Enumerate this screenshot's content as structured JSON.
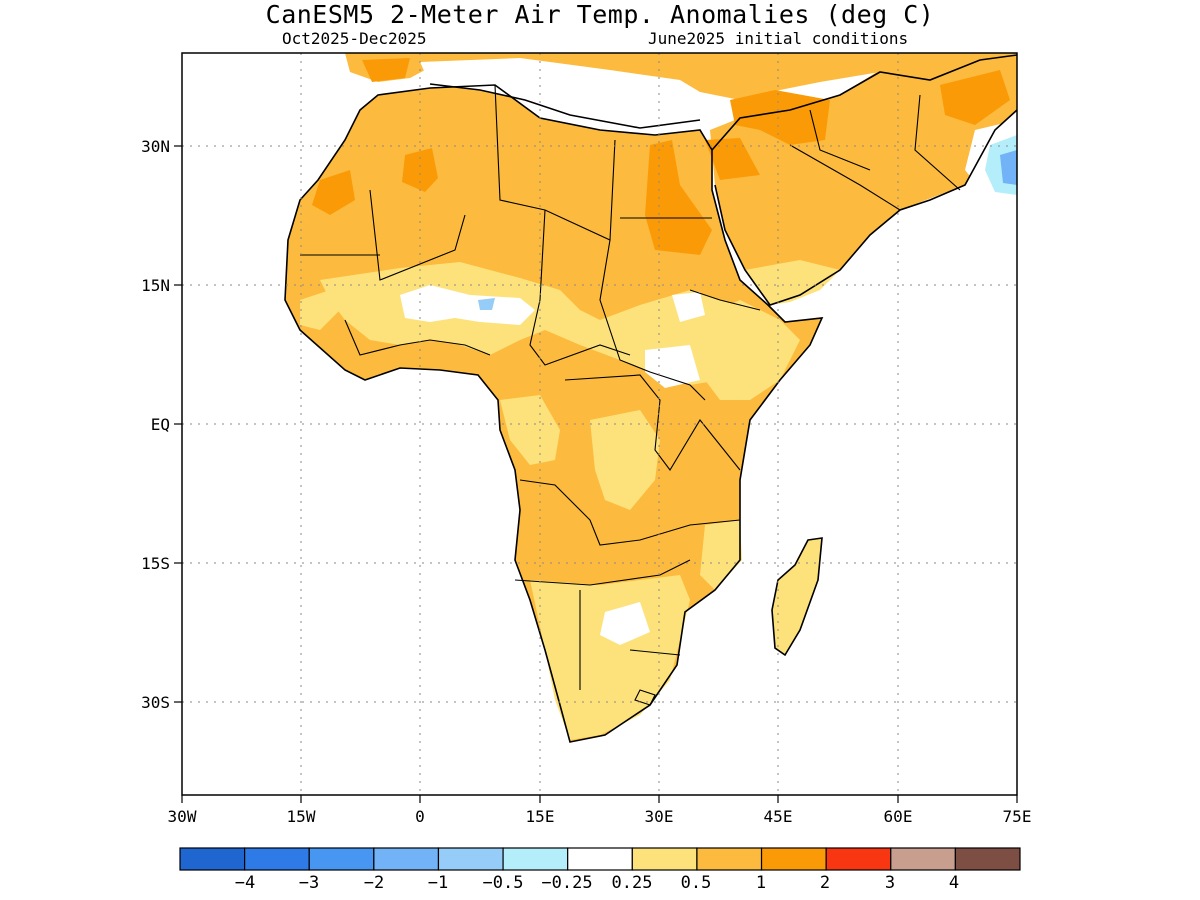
{
  "title": "CanESM5 2-Meter Air Temp. Anomalies (deg C)",
  "subtitle_left": "Oct2025-Dec2025",
  "subtitle_right": "June2025 initial conditions",
  "map": {
    "lon_range": [
      -30,
      75
    ],
    "lat_range": [
      -40,
      40
    ],
    "lon_ticks": [
      "30W",
      "15W",
      "0",
      "15E",
      "30E",
      "45E",
      "60E",
      "75E"
    ],
    "lat_ticks": [
      "30N",
      "15N",
      "EQ",
      "15S",
      "30S"
    ],
    "grid": "dotted"
  },
  "colorbar": {
    "colors": [
      "#1f66d1",
      "#2e7be8",
      "#4796f2",
      "#72b3f7",
      "#96cdf8",
      "#b5eefb",
      "#ffffff",
      "#fde27b",
      "#fcbb3e",
      "#fb9a07",
      "#f93612",
      "#c89e8f",
      "#7d4e43"
    ],
    "labels": [
      "−4",
      "−3",
      "−2",
      "−1",
      "−0.5",
      "−0.25",
      "0.25",
      "0.5",
      "1",
      "2",
      "3",
      "4"
    ]
  }
}
